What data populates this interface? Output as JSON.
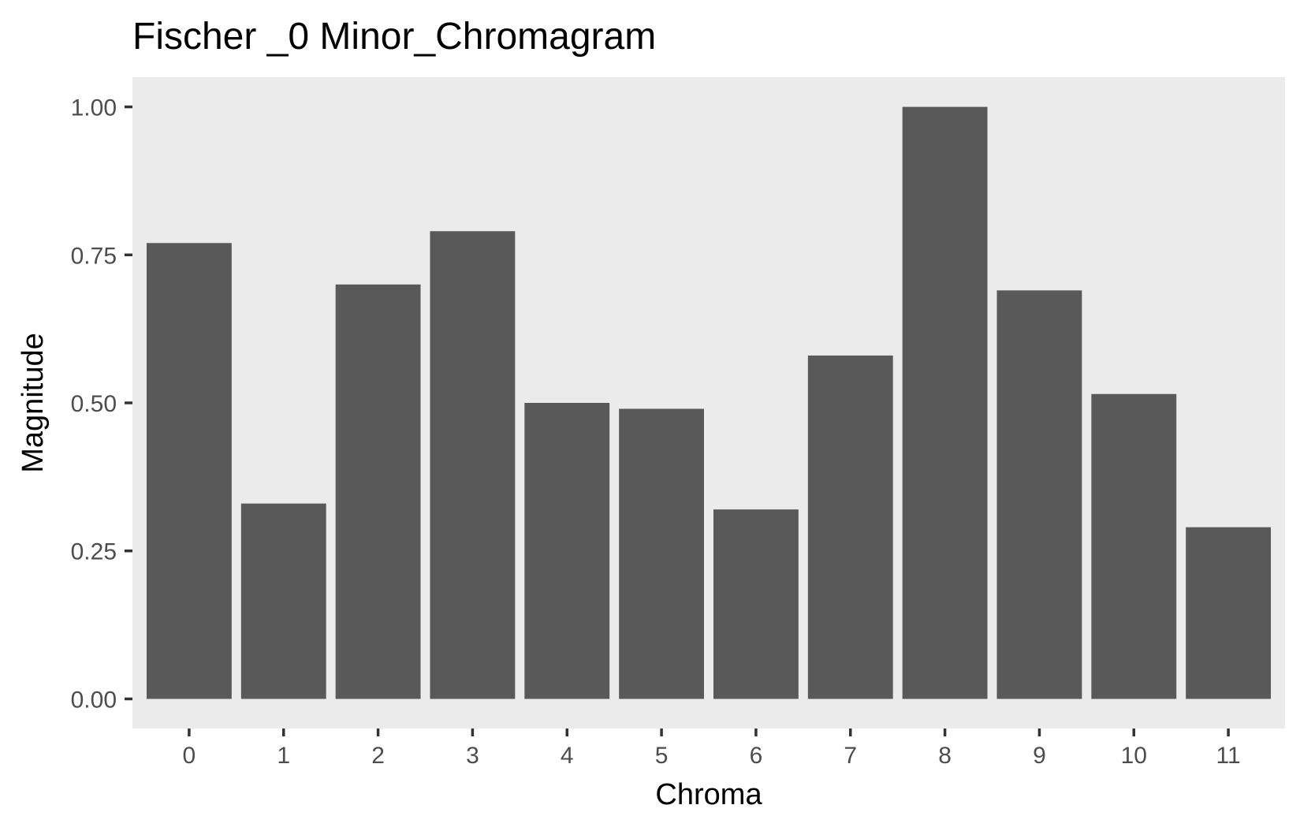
{
  "chart_data": {
    "type": "bar",
    "title": "Fischer _0 Minor_Chromagram",
    "xlabel": "Chroma",
    "ylabel": "Magnitude",
    "categories": [
      "0",
      "1",
      "2",
      "3",
      "4",
      "5",
      "6",
      "7",
      "8",
      "9",
      "10",
      "11"
    ],
    "values": [
      0.77,
      0.33,
      0.7,
      0.79,
      0.5,
      0.49,
      0.32,
      0.58,
      1.0,
      0.69,
      0.515,
      0.29
    ],
    "ylim": [
      -0.05,
      1.05
    ],
    "yticks": [
      0,
      0.25,
      0.5,
      0.75,
      1.0
    ],
    "ytick_labels": [
      "0.00",
      "0.25",
      "0.50",
      "0.75",
      "1.00"
    ],
    "grid": false,
    "legend": "none",
    "colors": {
      "bar": "#595959",
      "panel_background": "#ebebeb",
      "tick_mark": "#333333",
      "tick_label": "#4d4d4d",
      "text": "#000000"
    }
  }
}
